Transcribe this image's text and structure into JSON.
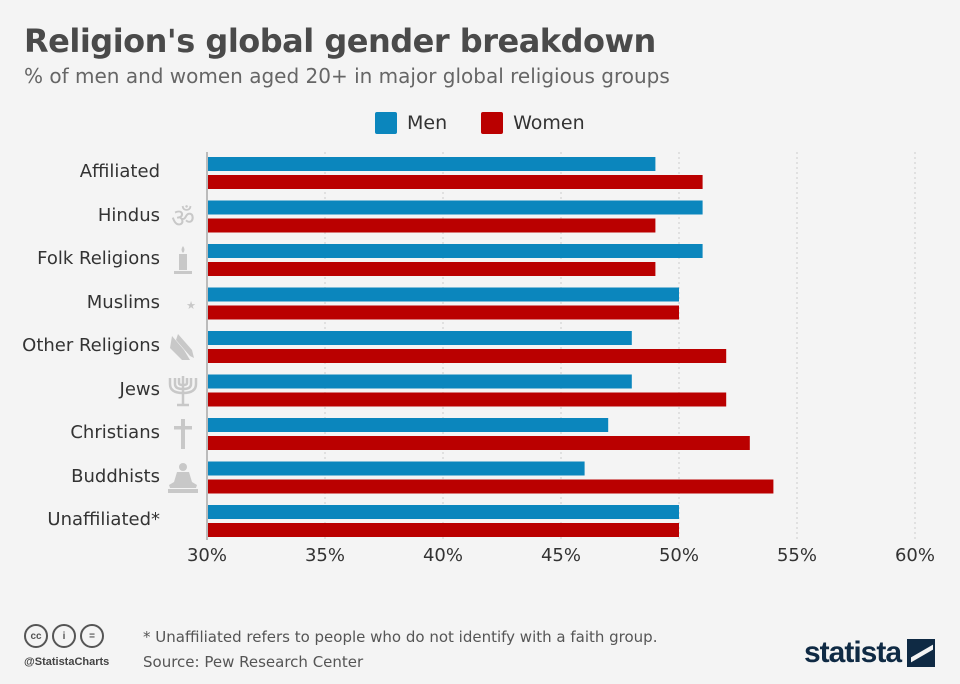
{
  "title": "Religion's global gender breakdown",
  "subtitle": "% of men and women aged 20+ in major global religious groups",
  "colors": {
    "men": "#0b86bd",
    "women": "#ba0000",
    "background": "#f4f4f4"
  },
  "chart_data": {
    "type": "bar",
    "orientation": "horizontal",
    "categories": [
      "Affiliated",
      "Hindus",
      "Folk Religions",
      "Muslims",
      "Other Religions",
      "Jews",
      "Christians",
      "Buddhists",
      "Unaffiliated*"
    ],
    "category_icons": [
      null,
      "om-icon",
      "candle-icon",
      "crescent-star-icon",
      "praying-hands-icon",
      "menorah-icon",
      "cross-icon",
      "meditation-icon",
      null
    ],
    "series": [
      {
        "name": "Men",
        "color": "#0b86bd",
        "values": [
          49,
          51,
          51,
          50,
          48,
          48,
          47,
          46,
          50
        ]
      },
      {
        "name": "Women",
        "color": "#ba0000",
        "values": [
          51,
          49,
          49,
          50,
          52,
          52,
          53,
          54,
          50
        ]
      }
    ],
    "xlim": [
      30,
      60
    ],
    "xticks": [
      "30%",
      "35%",
      "40%",
      "45%",
      "50%",
      "55%",
      "60%"
    ],
    "xtick_values": [
      30,
      35,
      40,
      45,
      50,
      55,
      60
    ],
    "grid": true,
    "legend_position": "top"
  },
  "footer": {
    "footnote": "* Unaffiliated refers to people who do not identify with a faith group.",
    "source": "Source: Pew Research Center",
    "handle": "@StatistaCharts",
    "logo": "statista",
    "license_icons": [
      "cc",
      "i",
      "="
    ]
  }
}
